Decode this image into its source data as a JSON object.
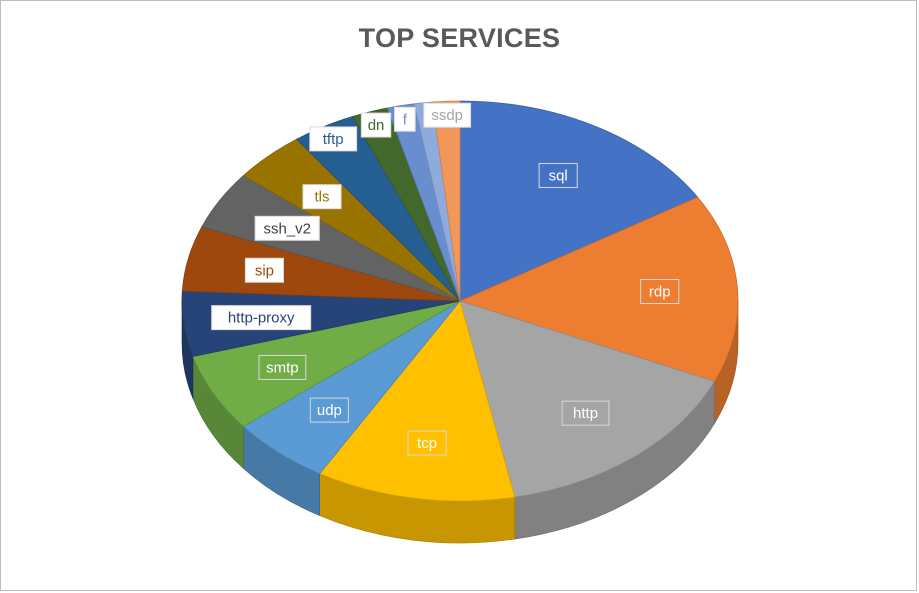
{
  "chart_data": {
    "type": "pie",
    "title": "TOP SERVICES",
    "style": "3d",
    "slices": [
      {
        "label": "sql",
        "value": 15.5,
        "color": "#4472C4",
        "text_color": "#ffffff",
        "box_fill": "#4472C4"
      },
      {
        "label": "rdp",
        "value": 14.5,
        "color": "#ED7D31",
        "text_color": "#ffffff",
        "box_fill": "#ED7D31"
      },
      {
        "label": "http",
        "value": 14.5,
        "color": "#A5A5A5",
        "text_color": "#ffffff",
        "box_fill": "#A5A5A5"
      },
      {
        "label": "tcp",
        "value": 11.0,
        "color": "#FFC000",
        "text_color": "#ffffff",
        "box_fill": "#FFC000"
      },
      {
        "label": "udp",
        "value": 5.5,
        "color": "#5B9BD5",
        "text_color": "#ffffff",
        "box_fill": "#5B9BD5"
      },
      {
        "label": "smtp",
        "value": 6.0,
        "color": "#70AD47",
        "text_color": "#ffffff",
        "box_fill": "#70AD47"
      },
      {
        "label": "http-proxy",
        "value": 5.0,
        "color": "#264478",
        "text_color": "#264478",
        "box_fill": "#ffffff"
      },
      {
        "label": "sip",
        "value": 5.0,
        "color": "#9E480E",
        "text_color": "#9E480E",
        "box_fill": "#ffffff"
      },
      {
        "label": "ssh_v2",
        "value": 4.5,
        "color": "#636363",
        "text_color": "#404040",
        "box_fill": "#ffffff"
      },
      {
        "label": "tls",
        "value": 4.0,
        "color": "#997300",
        "text_color": "#997300",
        "box_fill": "#ffffff"
      },
      {
        "label": "tftp",
        "value": 3.5,
        "color": "#255E91",
        "text_color": "#255E91",
        "box_fill": "#ffffff"
      },
      {
        "label": "dn",
        "value": 2.0,
        "color": "#43682B",
        "text_color": "#43682B",
        "box_fill": "#ffffff"
      },
      {
        "label": "f",
        "value": 1.5,
        "color": "#698ED0",
        "text_color": "#698ED0",
        "box_fill": "#ffffff"
      },
      {
        "label": "",
        "value": 1.0,
        "color": "#8FAADC",
        "text_color": "#8FAADC",
        "box_fill": "#ffffff"
      },
      {
        "label": "ssdp",
        "value": 1.5,
        "color": "#F1975A",
        "text_color": "#A5A5A5",
        "box_fill": "#ffffff"
      }
    ]
  }
}
